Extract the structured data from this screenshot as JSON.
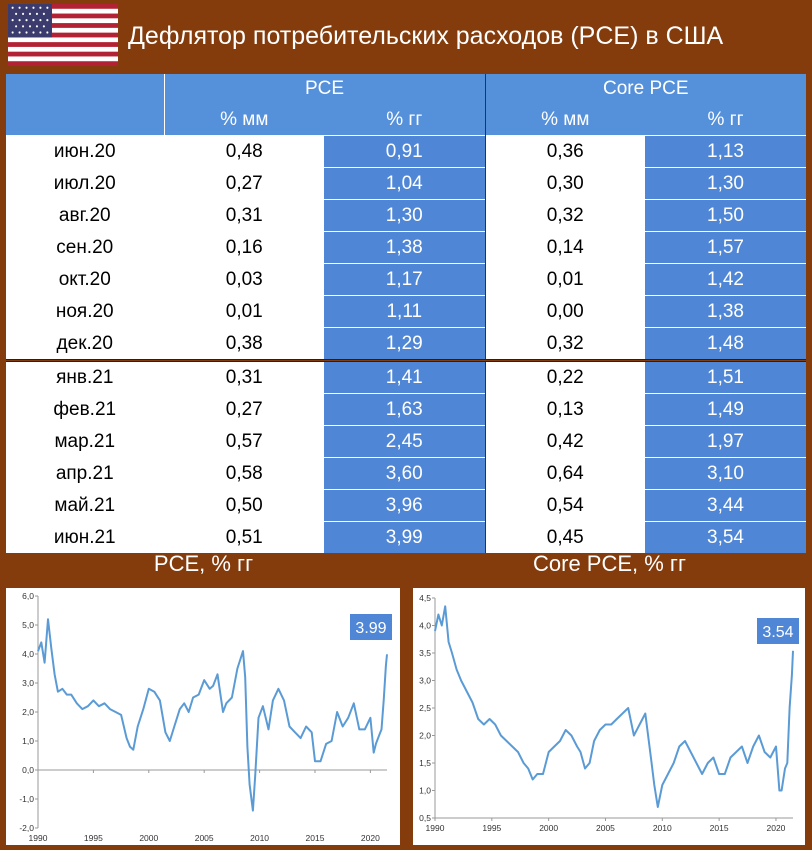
{
  "title": "Дефлятор потребительских расходов (PCE) в США",
  "table": {
    "group_headers": [
      "PCE",
      "Core PCE"
    ],
    "sub_headers": [
      "% мм",
      "% гг",
      "% мм",
      "% гг"
    ],
    "rows": [
      {
        "month": "июн.20",
        "pce_mm": "0,48",
        "pce_yy": "0,91",
        "core_mm": "0,36",
        "core_yy": "1,13"
      },
      {
        "month": "июл.20",
        "pce_mm": "0,27",
        "pce_yy": "1,04",
        "core_mm": "0,30",
        "core_yy": "1,30"
      },
      {
        "month": "авг.20",
        "pce_mm": "0,31",
        "pce_yy": "1,30",
        "core_mm": "0,32",
        "core_yy": "1,50"
      },
      {
        "month": "сен.20",
        "pce_mm": "0,16",
        "pce_yy": "1,38",
        "core_mm": "0,14",
        "core_yy": "1,57"
      },
      {
        "month": "окт.20",
        "pce_mm": "0,03",
        "pce_yy": "1,17",
        "core_mm": "0,01",
        "core_yy": "1,42"
      },
      {
        "month": "ноя.20",
        "pce_mm": "0,01",
        "pce_yy": "1,11",
        "core_mm": "0,00",
        "core_yy": "1,38"
      },
      {
        "month": "дек.20",
        "pce_mm": "0,38",
        "pce_yy": "1,29",
        "core_mm": "0,32",
        "core_yy": "1,48"
      },
      {
        "month": "янв.21",
        "pce_mm": "0,31",
        "pce_yy": "1,41",
        "core_mm": "0,22",
        "core_yy": "1,51"
      },
      {
        "month": "фев.21",
        "pce_mm": "0,27",
        "pce_yy": "1,63",
        "core_mm": "0,13",
        "core_yy": "1,49"
      },
      {
        "month": "мар.21",
        "pce_mm": "0,57",
        "pce_yy": "2,45",
        "core_mm": "0,42",
        "core_yy": "1,97"
      },
      {
        "month": "апр.21",
        "pce_mm": "0,58",
        "pce_yy": "3,60",
        "core_mm": "0,64",
        "core_yy": "3,10"
      },
      {
        "month": "май.21",
        "pce_mm": "0,50",
        "pce_yy": "3,96",
        "core_mm": "0,54",
        "core_yy": "3,44"
      },
      {
        "month": "июн.21",
        "pce_mm": "0,51",
        "pce_yy": "3,99",
        "core_mm": "0,45",
        "core_yy": "3,54"
      }
    ]
  },
  "colors": {
    "background": "#843C0C",
    "header_blue": "#5590DA",
    "cell_blue": "#4F87D6",
    "line": "#5B9BD5"
  },
  "chart_data": [
    {
      "type": "line",
      "title": "PCE, % гг",
      "annotation": "3.99",
      "xlim": [
        1990,
        2021.5
      ],
      "ylim": [
        -2.0,
        6.0
      ],
      "xticks": [
        1990,
        1995,
        2000,
        2005,
        2010,
        2015,
        2020
      ],
      "yticks": [
        "-2,0",
        "-1,0",
        "0,0",
        "1,0",
        "2,0",
        "3,0",
        "4,0",
        "5,0",
        "6,0"
      ],
      "grid": false,
      "series": [
        {
          "x": [
            1990.0,
            1990.3,
            1990.6,
            1990.9,
            1991.2,
            1991.5,
            1991.8,
            1992.2,
            1992.6,
            1993.0,
            1993.5,
            1994.0,
            1994.5,
            1995.0,
            1995.5,
            1996.0,
            1996.5,
            1997.0,
            1997.5,
            1998.0,
            1998.3,
            1998.6,
            1999.0,
            1999.5,
            2000.0,
            2000.5,
            2001.0,
            2001.5,
            2001.9,
            2002.3,
            2002.8,
            2003.2,
            2003.6,
            2004.0,
            2004.5,
            2005.0,
            2005.5,
            2005.8,
            2006.2,
            2006.7,
            2007.0,
            2007.5,
            2008.0,
            2008.5,
            2008.7,
            2008.9,
            2009.1,
            2009.4,
            2009.6,
            2009.9,
            2010.3,
            2010.8,
            2011.2,
            2011.7,
            2012.2,
            2012.7,
            2013.2,
            2013.7,
            2014.2,
            2014.7,
            2015.0,
            2015.5,
            2016.0,
            2016.5,
            2017.0,
            2017.5,
            2018.0,
            2018.5,
            2019.0,
            2019.5,
            2020.0,
            2020.3,
            2020.5,
            2020.8,
            2021.0,
            2021.2,
            2021.4,
            2021.5
          ],
          "values": [
            4.1,
            4.4,
            3.7,
            5.2,
            4.2,
            3.3,
            2.7,
            2.8,
            2.6,
            2.6,
            2.3,
            2.1,
            2.2,
            2.4,
            2.2,
            2.3,
            2.1,
            2.0,
            1.9,
            1.1,
            0.8,
            0.7,
            1.5,
            2.1,
            2.8,
            2.7,
            2.4,
            1.3,
            1.0,
            1.5,
            2.1,
            2.3,
            2.0,
            2.5,
            2.6,
            3.1,
            2.8,
            2.9,
            3.3,
            2.0,
            2.3,
            2.5,
            3.5,
            4.1,
            3.2,
            0.8,
            -0.5,
            -1.4,
            -0.2,
            1.8,
            2.2,
            1.4,
            2.4,
            2.8,
            2.4,
            1.5,
            1.3,
            1.1,
            1.5,
            1.3,
            0.3,
            0.3,
            0.9,
            1.0,
            2.0,
            1.5,
            1.8,
            2.3,
            1.4,
            1.4,
            1.8,
            0.6,
            0.9,
            1.2,
            1.4,
            2.4,
            3.6,
            3.99
          ]
        }
      ]
    },
    {
      "type": "line",
      "title": "Core PCE, % гг",
      "annotation": "3.54",
      "xlim": [
        1990,
        2021.5
      ],
      "ylim": [
        0.5,
        4.5
      ],
      "xticks": [
        1990,
        1995,
        2000,
        2005,
        2010,
        2015,
        2020
      ],
      "yticks": [
        "0,5",
        "1,0",
        "1,5",
        "2,0",
        "2,5",
        "3,0",
        "3,5",
        "4,0",
        "4,5"
      ],
      "grid": false,
      "series": [
        {
          "x": [
            1990.0,
            1990.3,
            1990.6,
            1990.9,
            1991.2,
            1991.5,
            1991.9,
            1992.3,
            1992.8,
            1993.3,
            1993.8,
            1994.3,
            1994.8,
            1995.3,
            1995.8,
            1996.3,
            1996.8,
            1997.3,
            1997.8,
            1998.2,
            1998.6,
            1999.0,
            1999.5,
            2000.0,
            2000.5,
            2001.0,
            2001.5,
            2002.0,
            2002.5,
            2002.8,
            2003.2,
            2003.6,
            2004.0,
            2004.5,
            2005.0,
            2005.5,
            2006.0,
            2006.5,
            2007.0,
            2007.5,
            2008.0,
            2008.5,
            2009.0,
            2009.3,
            2009.6,
            2010.0,
            2010.5,
            2011.0,
            2011.5,
            2012.0,
            2012.5,
            2013.0,
            2013.5,
            2014.0,
            2014.5,
            2015.0,
            2015.5,
            2016.0,
            2016.5,
            2017.0,
            2017.5,
            2018.0,
            2018.5,
            2019.0,
            2019.5,
            2020.0,
            2020.3,
            2020.5,
            2020.8,
            2021.0,
            2021.2,
            2021.4,
            2021.5
          ],
          "values": [
            3.9,
            4.2,
            4.0,
            4.35,
            3.7,
            3.5,
            3.2,
            3.0,
            2.8,
            2.6,
            2.3,
            2.2,
            2.3,
            2.2,
            2.0,
            1.9,
            1.8,
            1.7,
            1.5,
            1.4,
            1.2,
            1.3,
            1.3,
            1.7,
            1.8,
            1.9,
            2.1,
            2.0,
            1.8,
            1.7,
            1.4,
            1.5,
            1.9,
            2.1,
            2.2,
            2.2,
            2.3,
            2.4,
            2.5,
            2.0,
            2.2,
            2.4,
            1.6,
            1.1,
            0.7,
            1.1,
            1.3,
            1.5,
            1.8,
            1.9,
            1.7,
            1.5,
            1.3,
            1.5,
            1.6,
            1.3,
            1.3,
            1.6,
            1.7,
            1.8,
            1.5,
            1.8,
            2.0,
            1.7,
            1.6,
            1.8,
            1.0,
            1.0,
            1.4,
            1.5,
            2.5,
            3.1,
            3.54
          ]
        }
      ]
    }
  ]
}
